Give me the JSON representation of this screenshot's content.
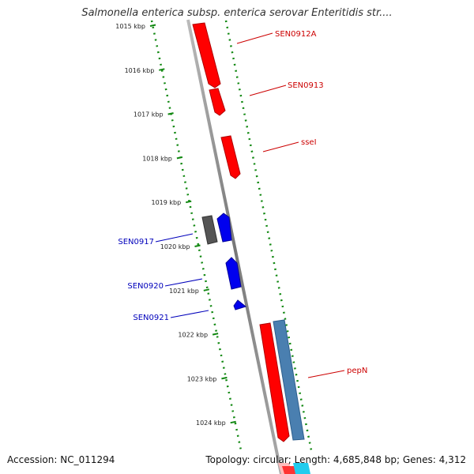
{
  "title": "Salmonella enterica subsp. enterica serovar Enteritidis str....",
  "footer": {
    "accession": "Accession: NC_011294",
    "summary": "Topology: circular; Length: 4,685,848 bp; Genes: 4,312"
  },
  "ticks": [
    "1015 kbp",
    "1016 kbp",
    "1017 kbp",
    "1018 kbp",
    "1019 kbp",
    "1020 kbp",
    "1021 kbp",
    "1022 kbp",
    "1023 kbp",
    "1024 kbp"
  ],
  "gene_labels": {
    "outer": [
      "SEN0912A",
      "SEN0913",
      "sseI",
      "pepN"
    ],
    "inner": [
      "SEN0917",
      "SEN0920",
      "SEN0921"
    ]
  },
  "colors": {
    "forward": "#ff0000",
    "reverse": "#0000ee",
    "pseudo": "#555555",
    "feature": "#4a7fb0",
    "backbone": "#888888",
    "tick": "#118811"
  }
}
